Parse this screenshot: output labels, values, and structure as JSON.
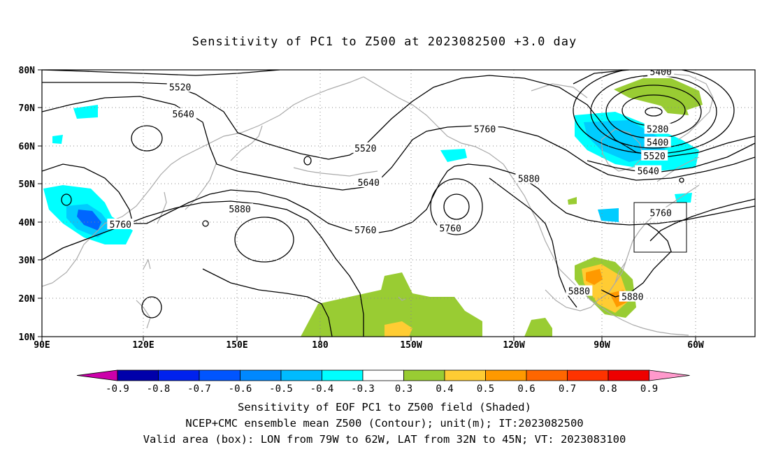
{
  "title": "Sensitivity of PC1 to Z500 at 2023082500 +3.0 day",
  "map": {
    "lon_labels": [
      "90E",
      "120E",
      "150E",
      "180",
      "150W",
      "120W",
      "90W",
      "60W"
    ],
    "lat_labels": [
      "80N",
      "70N",
      "60N",
      "50N",
      "40N",
      "30N",
      "20N",
      "10N"
    ],
    "contour_labels": [
      {
        "text": "5520",
        "lon": 134,
        "lat": 75.5
      },
      {
        "text": "5640",
        "lon": 135,
        "lat": 68.5
      },
      {
        "text": "5400",
        "lon": -73,
        "lat": 79.5
      },
      {
        "text": "5760",
        "lon": -129,
        "lat": 64.5
      },
      {
        "text": "5520",
        "lon": -167,
        "lat": 59.5
      },
      {
        "text": "5280",
        "lon": -74,
        "lat": 64.5
      },
      {
        "text": "5400",
        "lon": -74,
        "lat": 61
      },
      {
        "text": "5520",
        "lon": -75,
        "lat": 57.5
      },
      {
        "text": "5640",
        "lon": -77,
        "lat": 53.5
      },
      {
        "text": "5640",
        "lon": -166,
        "lat": 50.5
      },
      {
        "text": "5880",
        "lon": -115,
        "lat": 51.5
      },
      {
        "text": "5880",
        "lon": 153,
        "lat": 43.5
      },
      {
        "text": "5760",
        "lon": -73,
        "lat": 42.5
      },
      {
        "text": "5760",
        "lon": 115,
        "lat": 39.5
      },
      {
        "text": "5760",
        "lon": -167,
        "lat": 38
      },
      {
        "text": "5760",
        "lon": -140,
        "lat": 38.5
      },
      {
        "text": "5880",
        "lon": -99,
        "lat": 22
      },
      {
        "text": "5880",
        "lon": -82,
        "lat": 20.5
      }
    ],
    "shading_colors": {
      "positive_green": "#99cc33",
      "positive_yellow": "#ffcc33",
      "positive_orange": "#ff9900",
      "negative_cyan": "#00ffff",
      "negative_lightblue": "#00ccff",
      "negative_blue": "#0066ff",
      "negative_darkblue": "#0000cc"
    }
  },
  "colorbar": {
    "labels": [
      "-0.9",
      "-0.8",
      "-0.7",
      "-0.6",
      "-0.5",
      "-0.4",
      "-0.3",
      "0.3",
      "0.4",
      "0.5",
      "0.6",
      "0.7",
      "0.8",
      "0.9"
    ],
    "colors": [
      "#0000aa",
      "#0022ee",
      "#0055ff",
      "#0088ff",
      "#00bbff",
      "#00ffff",
      "#ffffff",
      "#99cc33",
      "#ffcc33",
      "#ff9900",
      "#ff6600",
      "#ff3300",
      "#ee0000"
    ],
    "low_end_color": "#cc00aa",
    "high_end_color": "#ff99cc"
  },
  "caption": {
    "line1": "Sensitivity of EOF PC1 to Z500 field (Shaded)",
    "line2": "NCEP+CMC ensemble mean Z500 (Contour); unit(m); IT:2023082500",
    "line3": "Valid area (box): LON from 79W to 62W, LAT from 32N to 45N; VT: 2023083100"
  }
}
